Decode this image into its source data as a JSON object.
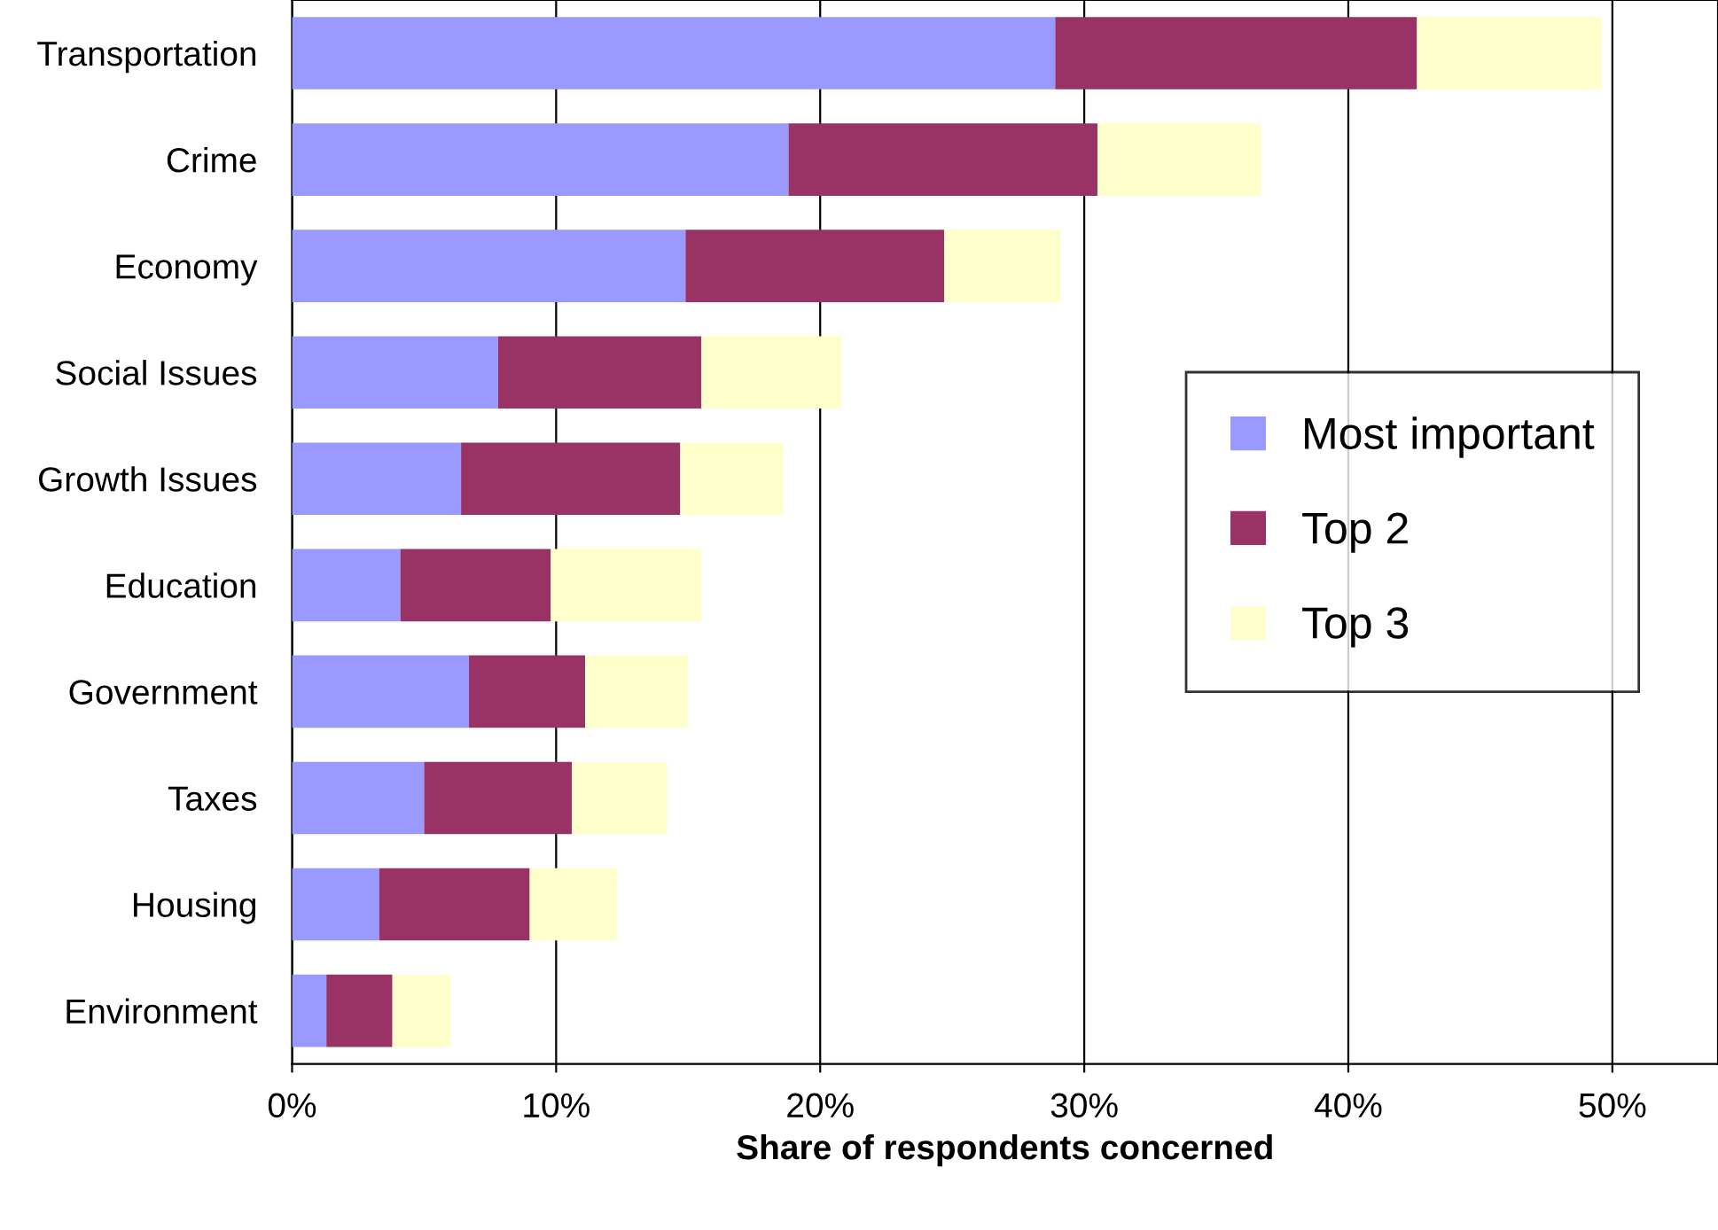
{
  "chart_data": {
    "type": "bar",
    "orientation": "horizontal",
    "stacked": true,
    "xlabel": "Share of respondents concerned",
    "categories": [
      "Transportation",
      "Crime",
      "Economy",
      "Social Issues",
      "Growth Issues",
      "Education",
      "Government",
      "Taxes",
      "Housing",
      "Environment"
    ],
    "series": [
      {
        "name": "Most important",
        "color": "#9999ff",
        "values": [
          28.9,
          18.8,
          14.9,
          7.8,
          6.4,
          4.1,
          6.7,
          5.0,
          3.3,
          1.3
        ]
      },
      {
        "name": "Top 2",
        "color": "#993366",
        "values": [
          13.7,
          11.7,
          9.8,
          7.7,
          8.3,
          5.7,
          4.4,
          5.6,
          5.7,
          2.5
        ]
      },
      {
        "name": "Top 3",
        "color": "#ffffcc",
        "values": [
          7.0,
          6.2,
          4.4,
          5.3,
          3.9,
          5.7,
          3.9,
          3.6,
          3.3,
          2.2
        ]
      }
    ],
    "xlim": [
      0,
      54
    ],
    "xticks": [
      {
        "value": 0,
        "label": "0%"
      },
      {
        "value": 10,
        "label": "10%"
      },
      {
        "value": 20,
        "label": "20%"
      },
      {
        "value": 30,
        "label": "30%"
      },
      {
        "value": 40,
        "label": "40%"
      },
      {
        "value": 50,
        "label": "50%"
      }
    ],
    "grid": "x",
    "legend": "right"
  }
}
